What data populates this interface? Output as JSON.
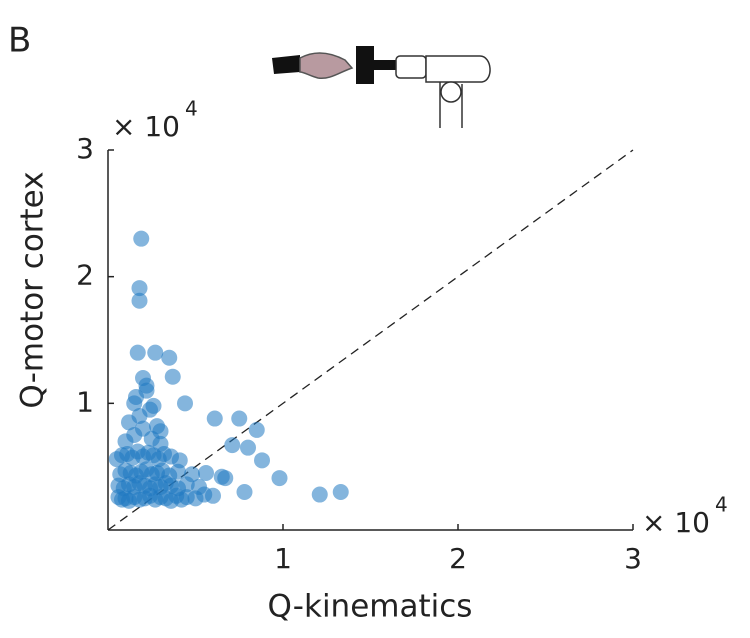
{
  "chart_data": {
    "type": "scatter",
    "panel_label": "B",
    "x_label": "Q-kinematics",
    "y_label": "Q-motor cortex",
    "x_scale_label": "× 10",
    "x_scale_exponent": "4",
    "y_scale_label": "× 10",
    "y_scale_exponent": "4",
    "xlim": [
      0,
      30000
    ],
    "ylim": [
      0,
      30000
    ],
    "xticks": [
      {
        "value": 10000,
        "label": "1"
      },
      {
        "value": 20000,
        "label": "2"
      },
      {
        "value": 30000,
        "label": "3"
      }
    ],
    "yticks": [
      {
        "value": 10000,
        "label": "1"
      },
      {
        "value": 20000,
        "label": "2"
      },
      {
        "value": 30000,
        "label": "3"
      }
    ],
    "diagonal": true,
    "color": "#1f78c1",
    "x": [
      1900,
      1800,
      1800,
      1700,
      2700,
      3500,
      3700,
      2200,
      4400,
      6100,
      7500,
      8500,
      7100,
      8000,
      8800,
      9800,
      12100,
      13300,
      7800,
      6700,
      600,
      800,
      1000,
      1200,
      1500,
      1800,
      2100,
      2400,
      2700,
      3000,
      3300,
      3600,
      3900,
      4200,
      4500,
      5000,
      5500,
      6000,
      600,
      900,
      1200,
      1500,
      1800,
      2100,
      2400,
      2700,
      3000,
      3300,
      3600,
      4000,
      4500,
      5200,
      700,
      1000,
      1300,
      1600,
      1900,
      2200,
      2500,
      2800,
      3100,
      3500,
      4000,
      4800,
      5600,
      6500,
      500,
      800,
      1100,
      1400,
      1700,
      2000,
      2300,
      2600,
      2900,
      3200,
      3600,
      4100,
      1000,
      1500,
      2000,
      2500,
      3000,
      1200,
      1800,
      2400,
      3000,
      1600,
      2200,
      2800,
      2000,
      2600,
      1500
    ],
    "y": [
      23000,
      19100,
      18100,
      14000,
      14000,
      13600,
      12100,
      11400,
      10000,
      8800,
      8800,
      7900,
      6700,
      6500,
      5500,
      4100,
      2800,
      3000,
      3000,
      4100,
      2600,
      2400,
      2500,
      2300,
      2600,
      2400,
      2500,
      2700,
      2400,
      2600,
      2500,
      2300,
      2700,
      2400,
      2600,
      2500,
      2800,
      2700,
      3500,
      3300,
      3600,
      3400,
      3700,
      3500,
      3300,
      3600,
      3400,
      3700,
      3500,
      3300,
      3600,
      3400,
      4400,
      4700,
      4500,
      4300,
      4600,
      4800,
      4400,
      4500,
      4700,
      4300,
      4600,
      4400,
      4500,
      4200,
      5600,
      5900,
      6000,
      5700,
      6200,
      5800,
      6100,
      5900,
      5600,
      6000,
      5800,
      5500,
      7000,
      7500,
      8000,
      7200,
      6800,
      8500,
      9000,
      9500,
      7800,
      10500,
      11000,
      8200,
      12000,
      9800,
      10000
    ]
  }
}
